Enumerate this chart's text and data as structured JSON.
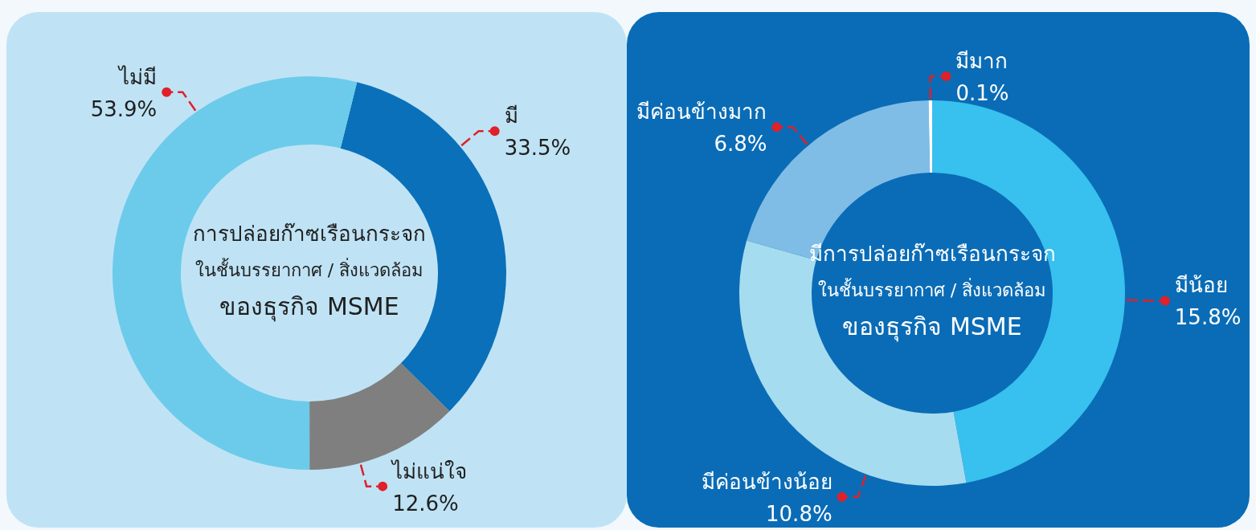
{
  "chart_data": [
    {
      "type": "donut",
      "title": "การปล่อยก๊าซเรือนกระจก\nในชั้นบรรยากาศ / สิ่งแวดล้อม\nของธุรกิจ MSME",
      "categories": [
        "มี",
        "ไม่แน่ใจ",
        "ไม่มี"
      ],
      "values": [
        33.5,
        12.6,
        53.9
      ],
      "colors": [
        "#0a70b9",
        "#7f7f7f",
        "#6ccbea"
      ],
      "value_labels": [
        "33.5%",
        "12.6%",
        "53.9%"
      ]
    },
    {
      "type": "donut",
      "title": "มีการปล่อยก๊าซเรือนกระจก\nในชั้นบรรยากาศ / สิ่งแวดล้อม\nของธุรกิจ MSME",
      "categories": [
        "มีน้อย",
        "มีค่อนข้างน้อย",
        "มีค่อนข้างมาก",
        "มีมาก"
      ],
      "values": [
        15.8,
        10.8,
        6.8,
        0.1
      ],
      "colors": [
        "#38c0ee",
        "#a6dcef",
        "#7fbde6",
        "#ffffff"
      ],
      "value_labels": [
        "15.8%",
        "10.8%",
        "6.8%",
        "0.1%"
      ]
    }
  ]
}
